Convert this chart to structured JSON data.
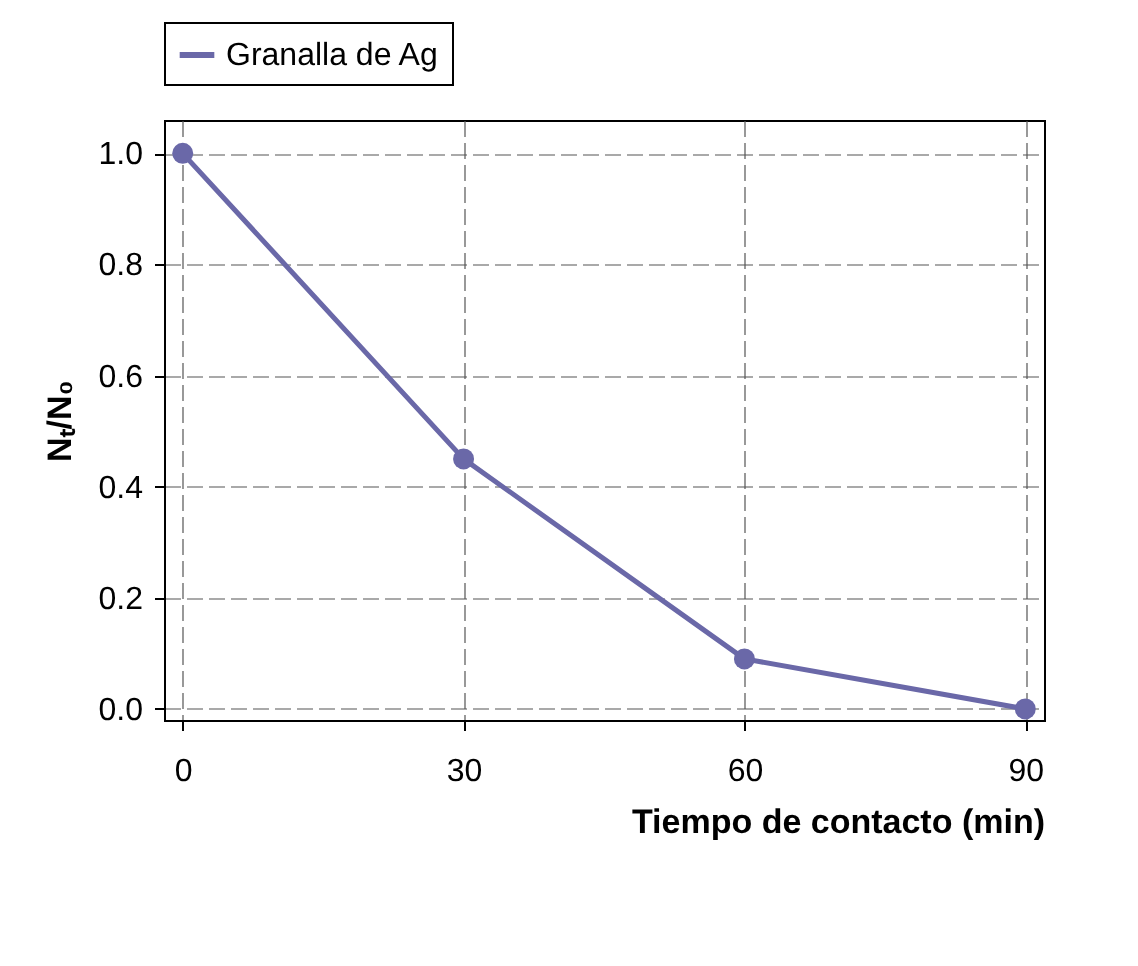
{
  "chart_data": {
    "type": "line",
    "xlabel": "Tiempo de contacto (min)",
    "ylabel": "Nₜ/N₀",
    "x": [
      0,
      30,
      60,
      90
    ],
    "series": [
      {
        "name": "Granalla de Ag",
        "color": "#6a68a8",
        "values": [
          1.0,
          0.45,
          0.09,
          0.0
        ]
      }
    ],
    "xlim": [
      -2,
      92
    ],
    "xticks": [
      0,
      30,
      60,
      90
    ],
    "ylim": [
      -0.02,
      1.06
    ],
    "yticks": [
      {
        "value": 0,
        "label": "0.0"
      },
      0.2,
      0.4,
      0.6,
      0.8,
      {
        "value": 1.0,
        "label": "1.0"
      }
    ],
    "grid": true,
    "legend": "top",
    "marker": "circle",
    "line_style": "solid"
  }
}
